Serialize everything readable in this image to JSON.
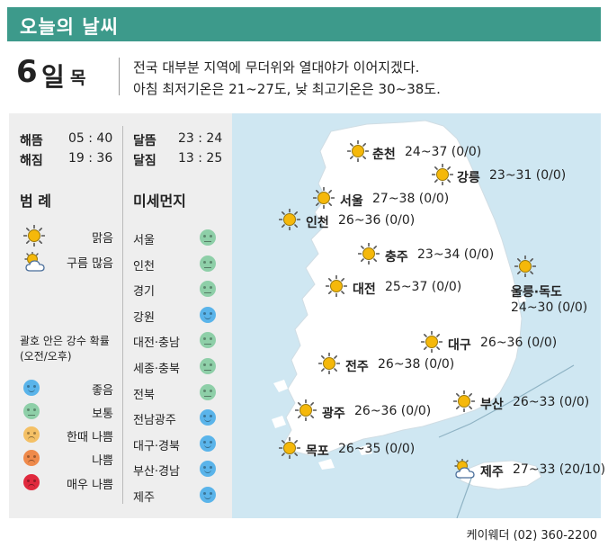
{
  "header": {
    "title": "오늘의 날씨"
  },
  "date": {
    "day": "6",
    "unit": "일",
    "weekday": "목"
  },
  "summary": [
    "전국 대부분 지역에 무더위와 열대야가 이어지겠다.",
    "아침 최저기온은 21~27도, 낮 최고기온은 30~38도."
  ],
  "astro": {
    "sunrise": {
      "label": "해뜸",
      "time": "05 : 40"
    },
    "sunset": {
      "label": "해짐",
      "time": "19 : 36"
    },
    "moonrise": {
      "label": "달뜸",
      "time": "23 : 24"
    },
    "moonset": {
      "label": "달짐",
      "time": "13 : 25"
    }
  },
  "legend": {
    "heading": "범 례",
    "items": [
      {
        "icon": "sun-icon",
        "label": "맑음"
      },
      {
        "icon": "partly-cloudy-icon",
        "label": "구름 많음"
      }
    ],
    "prob_note": [
      "괄호 안은 강수 확률",
      "(오전/오후)"
    ],
    "air_levels": [
      {
        "level": "good",
        "label": "좋음",
        "color": "#5ab4ea"
      },
      {
        "level": "normal",
        "label": "보통",
        "color": "#8ecfa8"
      },
      {
        "level": "bad",
        "label": "한때 나쁨",
        "color": "#f4c065"
      },
      {
        "level": "verybad",
        "label": "나쁨",
        "color": "#ef8a4b"
      },
      {
        "level": "worst",
        "label": "매우 나쁨",
        "color": "#e0293d"
      }
    ]
  },
  "dust": {
    "heading": "미세먼지",
    "regions": [
      {
        "name": "서울",
        "level": "normal"
      },
      {
        "name": "인천",
        "level": "normal"
      },
      {
        "name": "경기",
        "level": "normal"
      },
      {
        "name": "강원",
        "level": "good"
      },
      {
        "name": "대전·충남",
        "level": "normal"
      },
      {
        "name": "세종·충북",
        "level": "normal"
      },
      {
        "name": "전북",
        "level": "normal"
      },
      {
        "name": "전남광주",
        "level": "good"
      },
      {
        "name": "대구·경북",
        "level": "good"
      },
      {
        "name": "부산·경남",
        "level": "good"
      },
      {
        "name": "제주",
        "level": "good"
      }
    ]
  },
  "cities": [
    {
      "key": "chuncheon",
      "name": "춘천",
      "temp": "24~37 (0/0)",
      "weather": "sun-icon"
    },
    {
      "key": "gangneung",
      "name": "강릉",
      "temp": "23~31 (0/0)",
      "weather": "sun-icon"
    },
    {
      "key": "seoul",
      "name": "서울",
      "temp": "27~38 (0/0)",
      "weather": "sun-icon"
    },
    {
      "key": "incheon",
      "name": "인천",
      "temp": "26~36 (0/0)",
      "weather": "sun-icon"
    },
    {
      "key": "chungju",
      "name": "충주",
      "temp": "23~34 (0/0)",
      "weather": "sun-icon"
    },
    {
      "key": "ulleung",
      "name": "울릉·독도",
      "temp": "24~30 (0/0)",
      "weather": "sun-icon"
    },
    {
      "key": "daejeon",
      "name": "대전",
      "temp": "25~37 (0/0)",
      "weather": "sun-icon"
    },
    {
      "key": "daegu",
      "name": "대구",
      "temp": "26~36 (0/0)",
      "weather": "sun-icon"
    },
    {
      "key": "jeonju",
      "name": "전주",
      "temp": "26~38 (0/0)",
      "weather": "sun-icon"
    },
    {
      "key": "busan",
      "name": "부산",
      "temp": "26~33 (0/0)",
      "weather": "sun-icon"
    },
    {
      "key": "gwangju",
      "name": "광주",
      "temp": "26~36 (0/0)",
      "weather": "sun-icon"
    },
    {
      "key": "mokpo",
      "name": "목포",
      "temp": "26~35 (0/0)",
      "weather": "sun-icon"
    },
    {
      "key": "jeju",
      "name": "제주",
      "temp": "27~33 (20/10)",
      "weather": "partly-cloudy-icon"
    }
  ],
  "footer": {
    "credit": "케이웨더 (02) 360-2200"
  },
  "colors": {
    "header": "#3d9a8b",
    "sea": "#cfe7f2",
    "land": "#ffffff",
    "panel": "#eeeeee",
    "sun": "#f2b705"
  }
}
